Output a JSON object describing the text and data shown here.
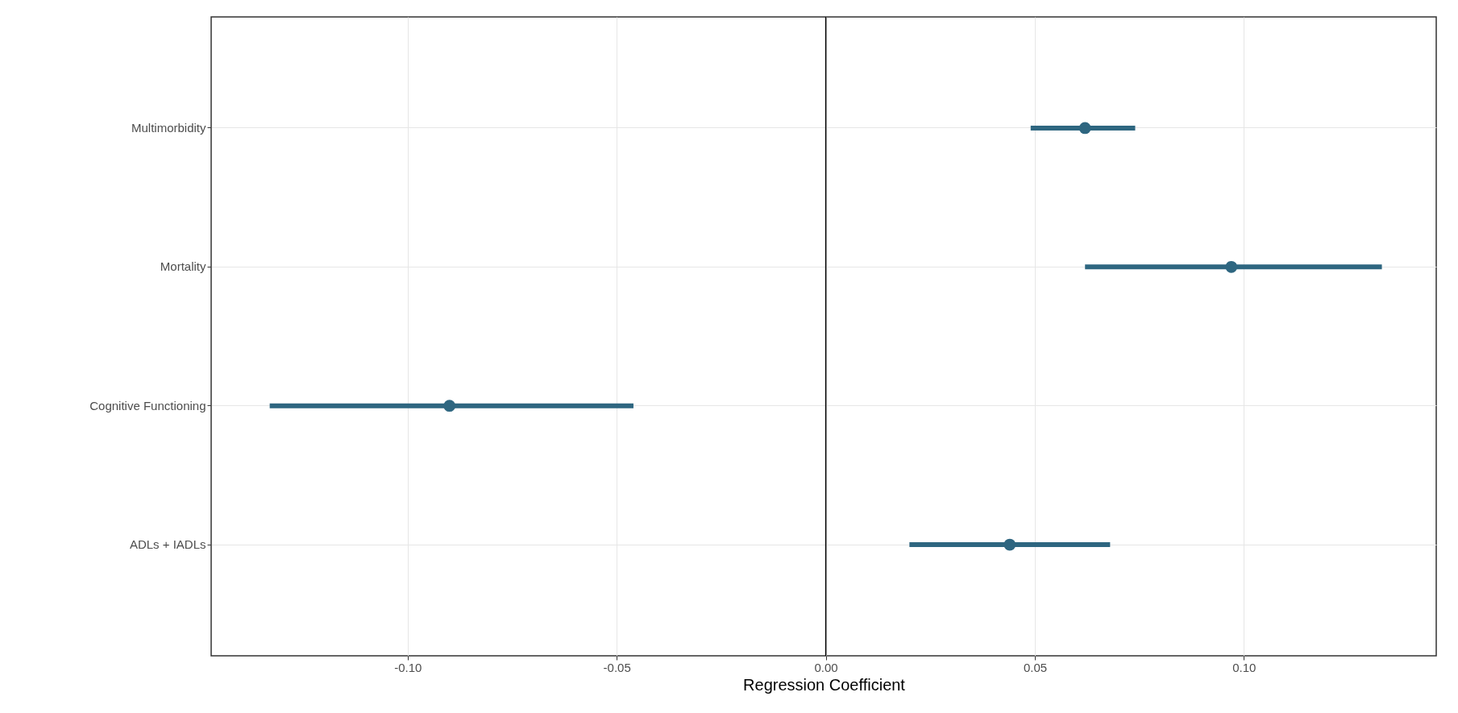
{
  "chart_data": {
    "type": "scatter",
    "orientation": "horizontal",
    "xlabel": "Regression Coefficient",
    "categories": [
      "Multimorbidity",
      "Mortality",
      "Cognitive Functioning",
      "ADLs + IADLs"
    ],
    "colors": [
      "#2e6680",
      "#2e6680",
      "#2e6680",
      "#2e6680"
    ],
    "values": [
      0.062,
      0.097,
      -0.09,
      0.044
    ],
    "errors": [
      [
        0.049,
        0.074
      ],
      [
        0.062,
        0.133
      ],
      [
        -0.133,
        -0.046
      ],
      [
        0.02,
        0.068
      ]
    ],
    "xlim": [
      -0.147,
      0.146
    ],
    "xticks": [
      {
        "value": -0.1,
        "label": "-0.10"
      },
      {
        "value": -0.05,
        "label": "-0.05"
      },
      {
        "value": 0,
        "label": "0.00"
      },
      {
        "value": 0.05,
        "label": "0.05"
      },
      {
        "value": 0.1,
        "label": "0.10"
      }
    ],
    "ref_lines": [
      {
        "axis": "x",
        "value": 0,
        "color": "#000000"
      }
    ],
    "grid": true,
    "marker": "circle"
  }
}
